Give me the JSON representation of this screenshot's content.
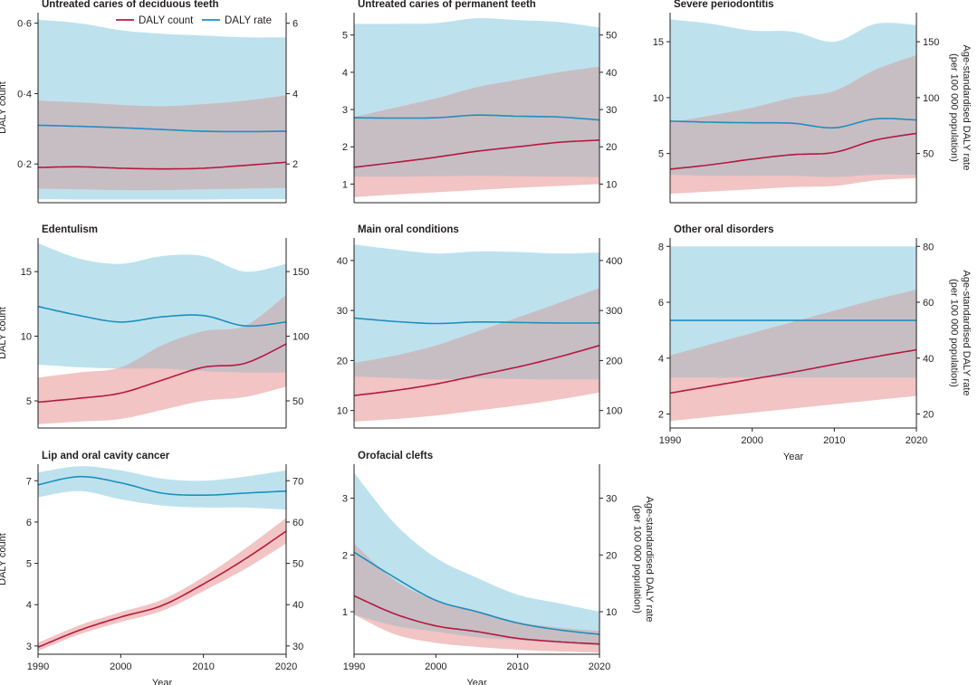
{
  "colors": {
    "count_line": "#b5193f",
    "count_band": "#f2c4c4",
    "rate_line": "#1e8fbf",
    "rate_band": "#bde2ee",
    "overlap_band": "#c7bec4",
    "axis": "#231f20"
  },
  "legend": [
    {
      "name": "DALY count",
      "color": "#b5193f"
    },
    {
      "name": "DALY rate",
      "color": "#1e8fbf"
    }
  ],
  "chart_data": [
    {
      "type": "line",
      "title": "Untreated caries of deciduous teeth",
      "xlabel": "",
      "ylabel": "DALY count",
      "ylabel_right": "",
      "xlim": [
        1990,
        2020
      ],
      "ylim": [
        0.09,
        0.63
      ],
      "ylim_right": [
        0.9,
        6.3
      ],
      "xticks": [],
      "yticks": [
        0.2,
        0.4,
        0.6
      ],
      "yticklabels": [
        "0·2",
        "0·4",
        "0·6"
      ],
      "yticks_right": [
        2,
        4,
        6
      ],
      "yticklabels_right": [
        "2",
        "4",
        "6"
      ],
      "x": [
        1990,
        1995,
        2000,
        2005,
        2010,
        2015,
        2020
      ],
      "series": [
        {
          "name": "DALY count",
          "axis": "left",
          "values": [
            0.19,
            0.192,
            0.188,
            0.186,
            0.188,
            0.196,
            0.205
          ],
          "lower": [
            0.13,
            0.128,
            0.126,
            0.126,
            0.128,
            0.13,
            0.132
          ],
          "upper": [
            0.38,
            0.375,
            0.368,
            0.364,
            0.37,
            0.38,
            0.395
          ]
        },
        {
          "name": "DALY rate",
          "axis": "right",
          "values": [
            3.1,
            3.07,
            3.03,
            2.98,
            2.93,
            2.92,
            2.93
          ],
          "lower": [
            1.0,
            0.99,
            0.99,
            0.99,
            0.99,
            1.0,
            1.0
          ],
          "upper": [
            6.1,
            6.0,
            5.8,
            5.7,
            5.65,
            5.6,
            5.6
          ]
        }
      ]
    },
    {
      "type": "line",
      "title": "Untreated caries of permanent teeth",
      "xlabel": "",
      "ylabel": "",
      "ylabel_right": "",
      "xlim": [
        1990,
        2020
      ],
      "ylim": [
        0.5,
        5.6
      ],
      "ylim_right": [
        5,
        56
      ],
      "xticks": [],
      "yticks": [
        1,
        2,
        3,
        4,
        5
      ],
      "yticklabels": [
        "1",
        "2",
        "3",
        "4",
        "5"
      ],
      "yticks_right": [
        10,
        20,
        30,
        40,
        50
      ],
      "yticklabels_right": [
        "10",
        "20",
        "30",
        "40",
        "50"
      ],
      "x": [
        1990,
        1995,
        2000,
        2005,
        2010,
        2015,
        2020
      ],
      "series": [
        {
          "name": "DALY count",
          "axis": "left",
          "values": [
            1.45,
            1.58,
            1.72,
            1.88,
            2.0,
            2.12,
            2.18
          ],
          "lower": [
            0.65,
            0.72,
            0.78,
            0.84,
            0.9,
            0.95,
            1.0
          ],
          "upper": [
            2.8,
            3.05,
            3.3,
            3.6,
            3.8,
            4.0,
            4.15
          ]
        },
        {
          "name": "DALY rate",
          "axis": "right",
          "values": [
            27.8,
            27.7,
            27.8,
            28.5,
            28.2,
            28.0,
            27.2
          ],
          "lower": [
            12.0,
            12.0,
            12.1,
            12.2,
            12.1,
            12.0,
            11.9
          ],
          "upper": [
            53.0,
            53.0,
            53.2,
            54.5,
            54.0,
            53.5,
            52.0
          ]
        }
      ]
    },
    {
      "type": "line",
      "title": "Severe periodontitis",
      "xlabel": "",
      "ylabel": "",
      "ylabel_right": "Age-standardised DALY rate (per 100 000 population)",
      "xlim": [
        1990,
        2020
      ],
      "ylim": [
        0.6,
        17.6
      ],
      "ylim_right": [
        6,
        176
      ],
      "xticks": [],
      "yticks": [
        5,
        10,
        15
      ],
      "yticklabels": [
        "5",
        "10",
        "15"
      ],
      "yticks_right": [
        50,
        100,
        150
      ],
      "yticklabels_right": [
        "50",
        "100",
        "150"
      ],
      "x": [
        1990,
        1995,
        2000,
        2005,
        2010,
        2015,
        2020
      ],
      "series": [
        {
          "name": "DALY count",
          "axis": "left",
          "values": [
            3.6,
            4.0,
            4.5,
            4.9,
            5.1,
            6.2,
            6.8
          ],
          "lower": [
            1.4,
            1.6,
            1.8,
            2.0,
            2.1,
            2.6,
            2.8
          ],
          "upper": [
            7.8,
            8.4,
            9.1,
            10.0,
            10.6,
            12.5,
            13.8
          ]
        },
        {
          "name": "DALY rate",
          "axis": "right",
          "values": [
            79,
            78,
            77.5,
            77,
            73,
            81,
            80
          ],
          "lower": [
            31,
            30,
            30,
            30,
            29,
            31,
            31
          ],
          "upper": [
            170,
            166,
            160,
            159,
            150,
            166,
            165
          ]
        }
      ]
    },
    {
      "type": "line",
      "title": "Edentulism",
      "xlabel": "",
      "ylabel": "DALY count",
      "ylabel_right": "",
      "xlim": [
        1990,
        2020
      ],
      "ylim": [
        2.9,
        17.6
      ],
      "ylim_right": [
        29,
        176
      ],
      "xticks": [],
      "yticks": [
        5,
        10,
        15
      ],
      "yticklabels": [
        "5",
        "10",
        "15"
      ],
      "yticks_right": [
        50,
        100,
        150
      ],
      "yticklabels_right": [
        "50",
        "100",
        "150"
      ],
      "x": [
        1990,
        1995,
        2000,
        2005,
        2010,
        2015,
        2020
      ],
      "series": [
        {
          "name": "DALY count",
          "axis": "left",
          "values": [
            4.9,
            5.2,
            5.6,
            6.6,
            7.6,
            7.9,
            9.4
          ],
          "lower": [
            3.2,
            3.4,
            3.6,
            4.3,
            5.0,
            5.3,
            6.1
          ],
          "upper": [
            6.8,
            7.2,
            7.6,
            9.3,
            10.4,
            10.8,
            13.2
          ]
        },
        {
          "name": "DALY rate",
          "axis": "right",
          "values": [
            123,
            116,
            111,
            115,
            116,
            108,
            111
          ],
          "lower": [
            78,
            76,
            75,
            75,
            73,
            72,
            72
          ],
          "upper": [
            172,
            160,
            156,
            162,
            162,
            150,
            156
          ]
        }
      ]
    },
    {
      "type": "line",
      "title": "Main oral conditions",
      "xlabel": "",
      "ylabel": "",
      "ylabel_right": "",
      "xlim": [
        1990,
        2020
      ],
      "ylim": [
        6.5,
        44.5
      ],
      "ylim_right": [
        65,
        445
      ],
      "xticks": [],
      "yticks": [
        10,
        20,
        30,
        40
      ],
      "yticklabels": [
        "10",
        "20",
        "30",
        "40"
      ],
      "yticks_right": [
        100,
        200,
        300,
        400
      ],
      "yticklabels_right": [
        "100",
        "200",
        "300",
        "400"
      ],
      "x": [
        1990,
        1995,
        2000,
        2005,
        2010,
        2015,
        2020
      ],
      "series": [
        {
          "name": "DALY count",
          "axis": "left",
          "values": [
            13,
            14,
            15.3,
            17,
            18.7,
            20.7,
            23
          ],
          "lower": [
            7.8,
            8.3,
            9.0,
            10.0,
            11.0,
            12.2,
            13.6
          ],
          "upper": [
            19.5,
            21.0,
            23.0,
            25.8,
            28.6,
            31.5,
            34.5
          ]
        },
        {
          "name": "DALY rate",
          "axis": "right",
          "values": [
            285,
            278,
            274,
            277,
            276,
            275,
            275
          ],
          "lower": [
            168,
            165,
            162,
            164,
            163,
            162,
            162
          ],
          "upper": [
            432,
            422,
            414,
            418,
            417,
            414,
            416
          ]
        }
      ]
    },
    {
      "type": "line",
      "title": "Other oral disorders",
      "xlabel": "Year",
      "ylabel": "",
      "ylabel_right": "Age-standardised DALY rate (per 100 000 population)",
      "xlim": [
        1990,
        2020
      ],
      "ylim": [
        1.5,
        8.3
      ],
      "ylim_right": [
        15,
        83
      ],
      "xticks": [
        1990,
        2000,
        2010,
        2020
      ],
      "yticks": [
        2,
        4,
        6,
        8
      ],
      "yticklabels": [
        "2",
        "4",
        "6",
        "8"
      ],
      "yticks_right": [
        20,
        40,
        60,
        80
      ],
      "yticklabels_right": [
        "20",
        "40",
        "60",
        "80"
      ],
      "x": [
        1990,
        1995,
        2000,
        2005,
        2010,
        2015,
        2020
      ],
      "series": [
        {
          "name": "DALY count",
          "axis": "left",
          "values": [
            2.75,
            3.0,
            3.25,
            3.5,
            3.78,
            4.05,
            4.3
          ],
          "lower": [
            1.75,
            1.9,
            2.05,
            2.2,
            2.35,
            2.5,
            2.65
          ],
          "upper": [
            4.1,
            4.5,
            4.9,
            5.3,
            5.7,
            6.1,
            6.45
          ]
        },
        {
          "name": "DALY rate",
          "axis": "right",
          "values": [
            53.5,
            53.5,
            53.5,
            53.5,
            53.5,
            53.5,
            53.5
          ],
          "lower": [
            33,
            33,
            33,
            33,
            33,
            33,
            33
          ],
          "upper": [
            80,
            80,
            80,
            80,
            80,
            80,
            80
          ]
        }
      ]
    },
    {
      "type": "line",
      "title": "Lip and oral cavity cancer",
      "xlabel": "Year",
      "ylabel": "DALY count",
      "ylabel_right": "",
      "xlim": [
        1990,
        2020
      ],
      "ylim": [
        2.8,
        7.4
      ],
      "ylim_right": [
        28,
        74
      ],
      "xticks": [
        1990,
        2000,
        2010,
        2020
      ],
      "yticks": [
        3,
        4,
        5,
        6,
        7
      ],
      "yticklabels": [
        "3",
        "4",
        "5",
        "6",
        "7"
      ],
      "yticks_right": [
        30,
        40,
        50,
        60,
        70
      ],
      "yticklabels_right": [
        "30",
        "40",
        "50",
        "60",
        "70"
      ],
      "x": [
        1990,
        1995,
        2000,
        2005,
        2010,
        2015,
        2020
      ],
      "series": [
        {
          "name": "DALY count",
          "axis": "left",
          "values": [
            2.97,
            3.38,
            3.7,
            3.98,
            4.5,
            5.1,
            5.78
          ],
          "lower": [
            2.88,
            3.28,
            3.58,
            3.85,
            4.33,
            4.86,
            5.48
          ],
          "upper": [
            3.08,
            3.5,
            3.82,
            4.12,
            4.67,
            5.35,
            6.1
          ]
        },
        {
          "name": "DALY rate",
          "axis": "right",
          "values": [
            69,
            71,
            69.5,
            67,
            66.5,
            67,
            67.5
          ],
          "lower": [
            66,
            67.5,
            65.5,
            64,
            63.5,
            63.5,
            63
          ],
          "upper": [
            72,
            73.5,
            72.5,
            70.5,
            70,
            71,
            72.5
          ]
        }
      ]
    },
    {
      "type": "line",
      "title": "Orofacial clefts",
      "xlabel": "Year",
      "ylabel": "",
      "ylabel_right": "Age-standardised DALY rate (per 100 000 population)",
      "xlim": [
        1990,
        2020
      ],
      "ylim": [
        0.25,
        3.6
      ],
      "ylim_right": [
        2.5,
        36
      ],
      "xticks": [
        1990,
        2000,
        2010,
        2020
      ],
      "yticks": [
        1,
        2,
        3
      ],
      "yticklabels": [
        "1",
        "2",
        "3"
      ],
      "yticks_right": [
        10,
        20,
        30
      ],
      "yticklabels_right": [
        "10",
        "20",
        "30"
      ],
      "x": [
        1990,
        1995,
        2000,
        2005,
        2010,
        2015,
        2020
      ],
      "series": [
        {
          "name": "DALY count",
          "axis": "left",
          "values": [
            1.28,
            0.96,
            0.75,
            0.65,
            0.53,
            0.47,
            0.43
          ],
          "lower": [
            0.95,
            0.6,
            0.45,
            0.38,
            0.33,
            0.3,
            0.28
          ],
          "upper": [
            2.2,
            1.55,
            1.2,
            1.02,
            0.82,
            0.72,
            0.66
          ]
        },
        {
          "name": "DALY rate",
          "axis": "right",
          "values": [
            20.5,
            16,
            12,
            10,
            8,
            6.8,
            6
          ],
          "lower": [
            9.5,
            7.5,
            6.5,
            5.5,
            5,
            4.5,
            4
          ],
          "upper": [
            34.5,
            25.5,
            19.5,
            16,
            13,
            11.5,
            10
          ]
        }
      ]
    }
  ]
}
